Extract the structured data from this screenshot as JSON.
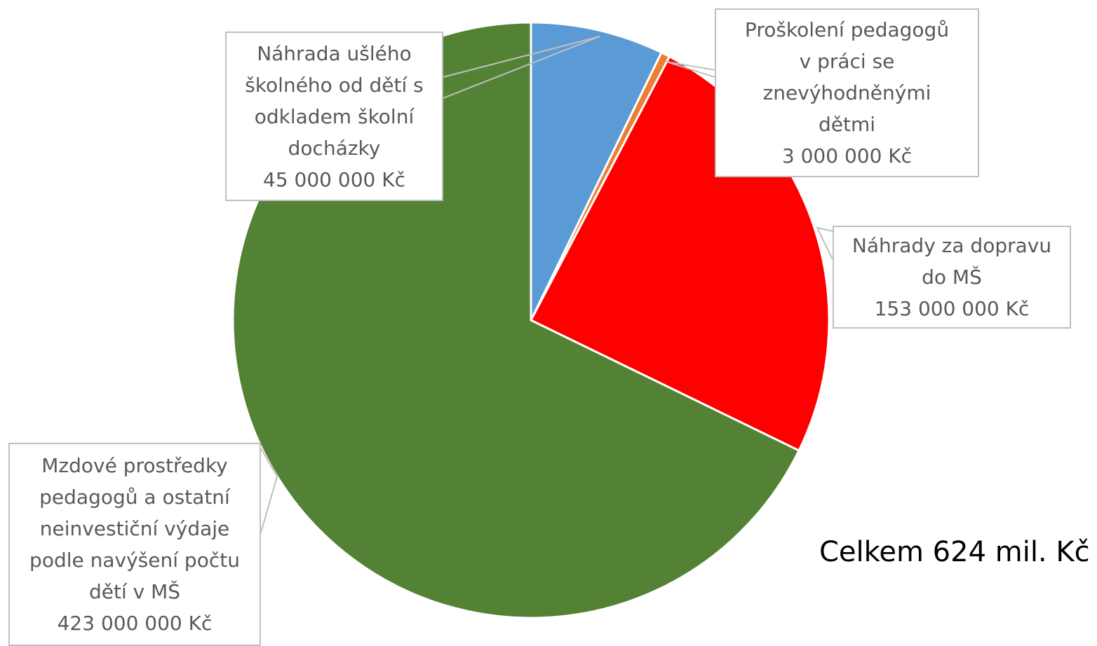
{
  "chart_data": {
    "type": "pie",
    "categories": [
      "Náhrada ušlého školného od dětí s odkladem školní docházky",
      "Proškolení pedagogů v práci se znevýhodněnými dětmi",
      "Náhrady za dopravu do MŠ",
      "Mzdové prostředky pedagogů a ostatní neinvestiční výdaje podle navýšení počtu dětí v MŠ"
    ],
    "values": [
      45000000,
      3000000,
      153000000,
      423000000
    ],
    "value_labels": [
      "45 000 000 Kč",
      "3 000 000 Kč",
      "153 000 000 Kč",
      "423 000 000 Kč"
    ],
    "colors": [
      "#5b9bd5",
      "#ed7d31",
      "#ff0000",
      "#548235"
    ],
    "annotation": "Celkem 624 mil. Kč"
  }
}
